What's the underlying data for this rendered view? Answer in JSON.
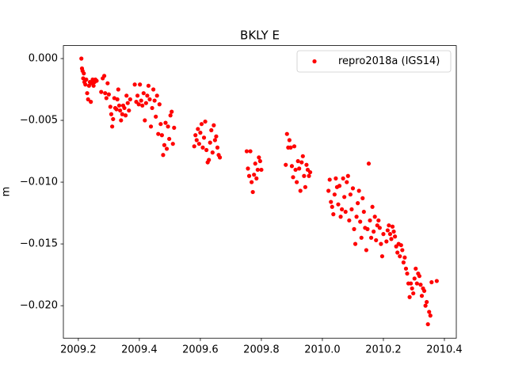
{
  "chart_data": {
    "type": "scatter",
    "title": "BKLY E",
    "y_label": "m",
    "xlim": [
      2009.151,
      2010.439
    ],
    "ylim": [
      -0.02263,
      0.00105
    ],
    "xticks": [
      2009.2,
      2009.4,
      2009.6,
      2009.8,
      {
        "value": 2010.0,
        "label": "2010.0"
      },
      2010.2,
      2010.4
    ],
    "yticks": [
      {
        "value": 0,
        "label": "0.000"
      },
      {
        "value": -0.005,
        "label": "−0.005"
      },
      {
        "value": -0.01,
        "label": "−0.010"
      },
      {
        "value": -0.015,
        "label": "−0.015"
      },
      {
        "value": -0.02,
        "label": "−0.020"
      }
    ],
    "legend": "upper right",
    "grid": false,
    "series": [
      {
        "name": "repro2018a (IGS14)",
        "color": "#ff0000",
        "x": [
          2009.21,
          2009.212,
          2009.214,
          2009.216,
          2009.218,
          2009.22,
          2009.223,
          2009.226,
          2009.229,
          2009.232,
          2009.235,
          2009.238,
          2009.241,
          2009.244,
          2009.247,
          2009.25,
          2009.253,
          2009.256,
          2009.26,
          2009.275,
          2009.28,
          2009.285,
          2009.288,
          2009.292,
          2009.296,
          2009.3,
          2009.305,
          2009.308,
          2009.311,
          2009.314,
          2009.318,
          2009.321,
          2009.325,
          2009.328,
          2009.331,
          2009.334,
          2009.337,
          2009.34,
          2009.344,
          2009.347,
          2009.351,
          2009.355,
          2009.358,
          2009.362,
          2009.366,
          2009.37,
          2009.385,
          2009.39,
          2009.394,
          2009.398,
          2009.402,
          2009.406,
          2009.41,
          2009.414,
          2009.418,
          2009.422,
          2009.426,
          2009.43,
          2009.434,
          2009.438,
          2009.442,
          2009.446,
          2009.45,
          2009.454,
          2009.458,
          2009.462,
          2009.466,
          2009.47,
          2009.474,
          2009.478,
          2009.482,
          2009.486,
          2009.49,
          2009.494,
          2009.498,
          2009.502,
          2009.506,
          2009.51,
          2009.514,
          2009.58,
          2009.584,
          2009.588,
          2009.592,
          2009.596,
          2009.6,
          2009.604,
          2009.608,
          2009.612,
          2009.616,
          2009.62,
          2009.624,
          2009.628,
          2009.632,
          2009.636,
          2009.64,
          2009.644,
          2009.648,
          2009.652,
          2009.656,
          2009.66,
          2009.664,
          2009.752,
          2009.756,
          2009.76,
          2009.764,
          2009.768,
          2009.772,
          2009.776,
          2009.78,
          2009.784,
          2009.788,
          2009.792,
          2009.796,
          2009.8,
          2009.88,
          2009.884,
          2009.888,
          2009.892,
          2009.896,
          2009.9,
          2009.904,
          2009.908,
          2009.912,
          2009.916,
          2009.92,
          2009.924,
          2009.928,
          2009.932,
          2009.936,
          2009.94,
          2009.944,
          2009.948,
          2009.952,
          2009.956,
          2009.96,
          2010.02,
          2010.024,
          2010.028,
          2010.032,
          2010.036,
          2010.04,
          2010.044,
          2010.048,
          2010.052,
          2010.056,
          2010.06,
          2010.064,
          2010.068,
          2010.072,
          2010.076,
          2010.08,
          2010.084,
          2010.088,
          2010.092,
          2010.096,
          2010.1,
          2010.104,
          2010.108,
          2010.112,
          2010.116,
          2010.12,
          2010.124,
          2010.128,
          2010.132,
          2010.136,
          2010.14,
          2010.144,
          2010.148,
          2010.152,
          2010.156,
          2010.16,
          2010.164,
          2010.168,
          2010.172,
          2010.176,
          2010.18,
          2010.184,
          2010.188,
          2010.192,
          2010.196,
          2010.2,
          2010.21,
          2010.214,
          2010.218,
          2010.222,
          2010.226,
          2010.23,
          2010.234,
          2010.238,
          2010.242,
          2010.246,
          2010.25,
          2010.254,
          2010.258,
          2010.262,
          2010.266,
          2010.27,
          2010.274,
          2010.278,
          2010.282,
          2010.286,
          2010.29,
          2010.294,
          2010.298,
          2010.302,
          2010.306,
          2010.31,
          2010.314,
          2010.318,
          2010.322,
          2010.326,
          2010.33,
          2010.334,
          2010.338,
          2010.342,
          2010.346,
          2010.35,
          2010.354,
          2010.358,
          2010.375
        ],
        "values": [
          0.0,
          -0.0008,
          -0.001,
          -0.0016,
          -0.0012,
          -0.0019,
          -0.0021,
          -0.0017,
          -0.0028,
          -0.0033,
          -0.0022,
          -0.0019,
          -0.0035,
          -0.002,
          -0.0017,
          -0.0022,
          -0.0019,
          -0.0017,
          -0.0018,
          -0.0027,
          -0.0016,
          -0.0014,
          -0.0028,
          -0.0032,
          -0.002,
          -0.0029,
          -0.0039,
          -0.0045,
          -0.0055,
          -0.0049,
          -0.0032,
          -0.004,
          -0.0041,
          -0.0033,
          -0.0025,
          -0.0038,
          -0.0042,
          -0.005,
          -0.0045,
          -0.0038,
          -0.004,
          -0.0046,
          -0.003,
          -0.0036,
          -0.0042,
          -0.0033,
          -0.0021,
          -0.0035,
          -0.003,
          -0.0037,
          -0.0021,
          -0.0034,
          -0.0038,
          -0.0028,
          -0.005,
          -0.0036,
          -0.003,
          -0.0022,
          -0.0033,
          -0.0055,
          -0.004,
          -0.0025,
          -0.0034,
          -0.0047,
          -0.003,
          -0.0061,
          -0.0037,
          -0.0053,
          -0.0062,
          -0.0078,
          -0.007,
          -0.0052,
          -0.0073,
          -0.0055,
          -0.0065,
          -0.0046,
          -0.0043,
          -0.0069,
          -0.0056,
          -0.0071,
          -0.0062,
          -0.0066,
          -0.0057,
          -0.0069,
          -0.006,
          -0.0053,
          -0.0072,
          -0.0064,
          -0.0051,
          -0.0074,
          -0.0084,
          -0.0082,
          -0.0068,
          -0.0058,
          -0.0076,
          -0.0054,
          -0.0066,
          -0.0063,
          -0.0072,
          -0.0078,
          -0.008,
          -0.0075,
          -0.0089,
          -0.0095,
          -0.0075,
          -0.01,
          -0.0108,
          -0.0094,
          -0.0085,
          -0.0097,
          -0.009,
          -0.008,
          -0.0083,
          -0.009,
          -0.0086,
          -0.0061,
          -0.0072,
          -0.0066,
          -0.0072,
          -0.0087,
          -0.0096,
          -0.0071,
          -0.009,
          -0.01,
          -0.0083,
          -0.0089,
          -0.0107,
          -0.0084,
          -0.0079,
          -0.0095,
          -0.0104,
          -0.0086,
          -0.009,
          -0.0095,
          -0.0092,
          -0.0107,
          -0.0098,
          -0.0116,
          -0.012,
          -0.0126,
          -0.011,
          -0.0097,
          -0.0104,
          -0.0118,
          -0.0103,
          -0.0128,
          -0.0122,
          -0.0097,
          -0.0112,
          -0.0124,
          -0.01,
          -0.0095,
          -0.0131,
          -0.011,
          -0.0122,
          -0.0105,
          -0.0138,
          -0.015,
          -0.0128,
          -0.0117,
          -0.0107,
          -0.0132,
          -0.0145,
          -0.0113,
          -0.0124,
          -0.0137,
          -0.0155,
          -0.0138,
          -0.0085,
          -0.0131,
          -0.0145,
          -0.012,
          -0.014,
          -0.0128,
          -0.0147,
          -0.0135,
          -0.0131,
          -0.0137,
          -0.015,
          -0.016,
          -0.0142,
          -0.0148,
          -0.0139,
          -0.0135,
          -0.0142,
          -0.0146,
          -0.0136,
          -0.014,
          -0.0144,
          -0.0152,
          -0.0157,
          -0.015,
          -0.016,
          -0.0151,
          -0.0155,
          -0.0165,
          -0.0161,
          -0.017,
          -0.0174,
          -0.0182,
          -0.0193,
          -0.0182,
          -0.0186,
          -0.019,
          -0.0178,
          -0.017,
          -0.0182,
          -0.0174,
          -0.0176,
          -0.0183,
          -0.0192,
          -0.0186,
          -0.0188,
          -0.02,
          -0.0197,
          -0.0215,
          -0.0205,
          -0.0208,
          -0.0181,
          -0.018
        ]
      }
    ]
  }
}
